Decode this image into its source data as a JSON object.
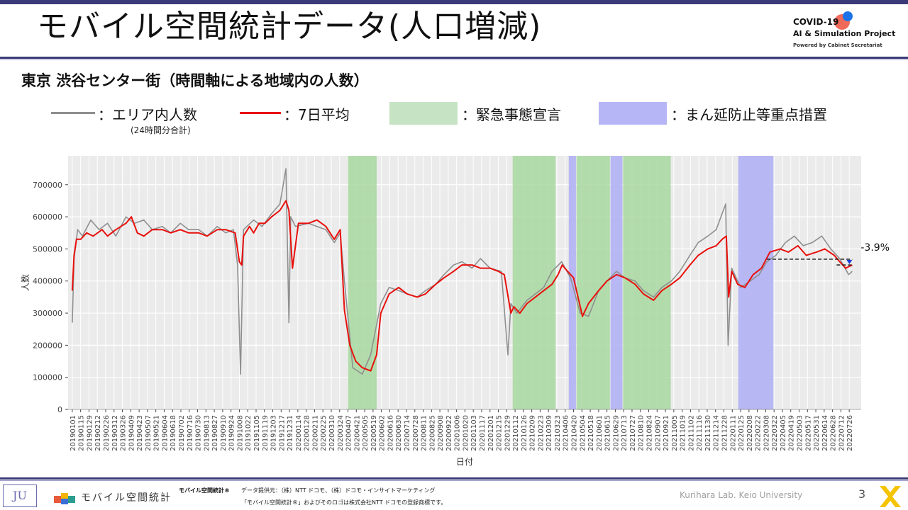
{
  "header": {
    "title": "モバイル空間統計データ(人口増減)",
    "logo": {
      "line1": "COVID-19",
      "line2": "AI & Simulation Project",
      "line3": "Powered by Cabinet Secretariat"
    }
  },
  "subtitle": "東京 渋谷センター街（時間軸による地域内の人数）",
  "legend": {
    "area": "：エリア内人数",
    "area_note": "(24時間分合計)",
    "avg": "：7日平均",
    "emergency": "：緊急事態宣言",
    "priority": "：まん延防止等重点措置"
  },
  "colors": {
    "raw": "#8f8f8f",
    "avg": "#e8100c",
    "emergency": "#a8d8a0",
    "priority": "#b4b4f4",
    "plot_bg": "#ebebeb",
    "accent": "#3a3a78"
  },
  "chart_data": {
    "type": "line",
    "xlabel": "日付",
    "ylabel": "人数",
    "ylim": [
      0,
      790000
    ],
    "y_ticks": [
      0,
      100000,
      200000,
      300000,
      400000,
      500000,
      600000,
      700000
    ],
    "x_ticks": [
      "20190101",
      "20190115",
      "20190129",
      "20190212",
      "20190226",
      "20190312",
      "20190326",
      "20190409",
      "20190423",
      "20190507",
      "20190521",
      "20190604",
      "20190618",
      "20190702",
      "20190716",
      "20190730",
      "20190813",
      "20190827",
      "20190910",
      "20190924",
      "20191008",
      "20191022",
      "20191105",
      "20191119",
      "20191203",
      "20191217",
      "20191231",
      "20200114",
      "20200128",
      "20200211",
      "20200225",
      "20200310",
      "20200324",
      "20200407",
      "20200421",
      "20200505",
      "20200519",
      "20200602",
      "20200616",
      "20200630",
      "20200714",
      "20200728",
      "20200811",
      "20200825",
      "20200908",
      "20200922",
      "20201006",
      "20201020",
      "20201103",
      "20201117",
      "20201201",
      "20201215",
      "20201229",
      "20210112",
      "20210126",
      "20210209",
      "20210223",
      "20210309",
      "20210323",
      "20210406",
      "20210420",
      "20210504",
      "20210518",
      "20210601",
      "20210615",
      "20210629",
      "20210713",
      "20210727",
      "20210810",
      "20210824",
      "20210907",
      "20210921",
      "20211005",
      "20211019",
      "20211102",
      "20211116",
      "20211130",
      "20211214",
      "20211228",
      "20220111",
      "20220125",
      "20220208",
      "20220222",
      "20220308",
      "20220322",
      "20220405",
      "20220419",
      "20220503",
      "20220517",
      "20220531",
      "20220614",
      "20220628",
      "20220712",
      "20220726"
    ],
    "emergency_periods": [
      [
        "20200407",
        "20200525"
      ],
      [
        "20210108",
        "20210321"
      ],
      [
        "20210425",
        "20210620"
      ],
      [
        "20210712",
        "20210930"
      ]
    ],
    "priority_periods": [
      [
        "20210412",
        "20210424"
      ],
      [
        "20210621",
        "20210711"
      ],
      [
        "20220121",
        "20220321"
      ]
    ],
    "series": [
      {
        "name": "エリア内人数",
        "x": [
          "20190101",
          "20190104",
          "20190110",
          "20190118",
          "20190201",
          "20190215",
          "20190301",
          "20190315",
          "20190401",
          "20190415",
          "20190501",
          "20190515",
          "20190601",
          "20190615",
          "20190701",
          "20190715",
          "20190801",
          "20190815",
          "20190901",
          "20190915",
          "20190928",
          "20191005",
          "20191010",
          "20191015",
          "20191101",
          "20191115",
          "20191201",
          "20191215",
          "20191225",
          "20191230",
          "20200102",
          "20200110",
          "20200201",
          "20200215",
          "20200301",
          "20200315",
          "20200325",
          "20200401",
          "20200415",
          "20200501",
          "20200515",
          "20200601",
          "20200615",
          "20200701",
          "20200715",
          "20200801",
          "20200815",
          "20200901",
          "20200915",
          "20201001",
          "20201015",
          "20201101",
          "20201115",
          "20201201",
          "20201220",
          "20201231",
          "20210105",
          "20210115",
          "20210201",
          "20210215",
          "20210301",
          "20210315",
          "20210331",
          "20210415",
          "20210501",
          "20210515",
          "20210601",
          "20210615",
          "20210701",
          "20210715",
          "20210801",
          "20210815",
          "20210901",
          "20210915",
          "20211001",
          "20211015",
          "20211101",
          "20211115",
          "20211201",
          "20211215",
          "20211231",
          "20220104",
          "20220110",
          "20220125",
          "20220210",
          "20220225",
          "20220310",
          "20220325",
          "20220410",
          "20220425",
          "20220510",
          "20220525",
          "20220610",
          "20220625",
          "20220710",
          "20220725",
          "20220731"
        ],
        "values": [
          270000,
          470000,
          560000,
          540000,
          590000,
          560000,
          580000,
          540000,
          600000,
          580000,
          590000,
          560000,
          570000,
          550000,
          580000,
          560000,
          560000,
          540000,
          570000,
          550000,
          560000,
          450000,
          110000,
          560000,
          590000,
          570000,
          610000,
          640000,
          750000,
          270000,
          600000,
          570000,
          580000,
          570000,
          560000,
          520000,
          550000,
          400000,
          130000,
          110000,
          170000,
          330000,
          380000,
          370000,
          360000,
          350000,
          370000,
          390000,
          420000,
          450000,
          460000,
          440000,
          470000,
          440000,
          430000,
          170000,
          330000,
          300000,
          340000,
          360000,
          380000,
          430000,
          460000,
          410000,
          300000,
          290000,
          370000,
          400000,
          430000,
          410000,
          400000,
          370000,
          350000,
          380000,
          400000,
          430000,
          480000,
          520000,
          540000,
          560000,
          640000,
          200000,
          440000,
          380000,
          400000,
          420000,
          460000,
          480000,
          520000,
          540000,
          510000,
          520000,
          540000,
          500000,
          470000,
          420000,
          430000
        ]
      },
      {
        "name": "7日平均",
        "x": [
          "20190101",
          "20190104",
          "20190108",
          "20190115",
          "20190125",
          "20190205",
          "20190220",
          "20190301",
          "20190315",
          "20190401",
          "20190410",
          "20190420",
          "20190501",
          "20190515",
          "20190601",
          "20190615",
          "20190701",
          "20190715",
          "20190801",
          "20190815",
          "20190901",
          "20190915",
          "20191001",
          "20191008",
          "20191012",
          "20191015",
          "20191025",
          "20191101",
          "20191110",
          "20191120",
          "20191201",
          "20191215",
          "20191225",
          "20191230",
          "20200105",
          "20200115",
          "20200201",
          "20200215",
          "20200301",
          "20200315",
          "20200325",
          "20200401",
          "20200410",
          "20200420",
          "20200501",
          "20200515",
          "20200525",
          "20200601",
          "20200615",
          "20200701",
          "20200715",
          "20200801",
          "20200815",
          "20200901",
          "20200915",
          "20201001",
          "20201015",
          "20201101",
          "20201115",
          "20201201",
          "20201215",
          "20201225",
          "20210105",
          "20210110",
          "20210120",
          "20210201",
          "20210215",
          "20210301",
          "20210315",
          "20210325",
          "20210401",
          "20210410",
          "20210420",
          "20210430",
          "20210505",
          "20210515",
          "20210601",
          "20210615",
          "20210701",
          "20210715",
          "20210801",
          "20210815",
          "20210901",
          "20210915",
          "20211001",
          "20211015",
          "20211101",
          "20211115",
          "20211201",
          "20211215",
          "20211225",
          "20220101",
          "20220105",
          "20220110",
          "20220120",
          "20220201",
          "20220215",
          "20220301",
          "20220315",
          "20220401",
          "20220415",
          "20220501",
          "20220515",
          "20220601",
          "20220615",
          "20220701",
          "20220710",
          "20220720",
          "20220731"
        ],
        "values": [
          370000,
          480000,
          530000,
          530000,
          550000,
          540000,
          560000,
          540000,
          560000,
          580000,
          600000,
          550000,
          540000,
          560000,
          560000,
          550000,
          560000,
          550000,
          550000,
          540000,
          560000,
          560000,
          550000,
          460000,
          450000,
          540000,
          570000,
          550000,
          580000,
          580000,
          600000,
          620000,
          650000,
          620000,
          440000,
          580000,
          580000,
          590000,
          570000,
          530000,
          560000,
          310000,
          200000,
          150000,
          130000,
          120000,
          170000,
          300000,
          360000,
          380000,
          360000,
          350000,
          360000,
          390000,
          410000,
          430000,
          450000,
          450000,
          440000,
          440000,
          430000,
          420000,
          300000,
          320000,
          300000,
          330000,
          350000,
          370000,
          390000,
          420000,
          450000,
          430000,
          410000,
          330000,
          290000,
          330000,
          370000,
          400000,
          420000,
          410000,
          390000,
          360000,
          340000,
          370000,
          390000,
          410000,
          450000,
          480000,
          500000,
          510000,
          530000,
          540000,
          350000,
          430000,
          390000,
          380000,
          420000,
          440000,
          490000,
          500000,
          490000,
          510000,
          480000,
          490000,
          500000,
          480000,
          460000,
          440000,
          450000
        ]
      }
    ],
    "annotation": {
      "text": "-3.9%",
      "reference_value": 468000,
      "current_value": 450000,
      "start": "20220310",
      "end": "20220731"
    }
  },
  "footer": {
    "icon_text": "JU",
    "brand": "モバイル空間統計",
    "brand_small": "モバイル空間統計®",
    "source": "データ提供元：（株）NTT ドコモ、（株）ドコモ・インサイトマーケティング",
    "trademark": "「モバイル空間統計®」およびそのロゴは株式会社NTT ドコモの登録商標です。",
    "lab": "Kurihara Lab. Keio University",
    "page": "3"
  }
}
